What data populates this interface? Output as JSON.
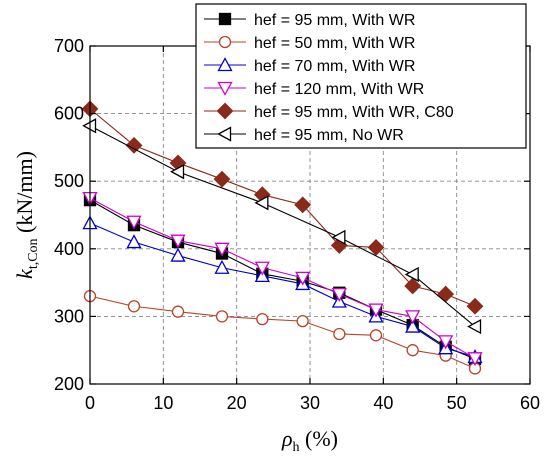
{
  "chart_data": {
    "type": "line",
    "xlabel": {
      "symbol": "ρ",
      "sub": "h",
      "rest": " (%)"
    },
    "ylabel": {
      "symbol": "k",
      "sub": "t,Con",
      "rest": " (kN/mm)"
    },
    "xlim": [
      0,
      60
    ],
    "ylim": [
      200,
      700
    ],
    "xticks": [
      "0",
      "10",
      "20",
      "30",
      "40",
      "50",
      "60"
    ],
    "yticks": [
      "200",
      "300",
      "400",
      "500",
      "600",
      "700"
    ],
    "grid": "dashed",
    "legend_position": "top-right",
    "x": [
      0,
      6,
      12,
      18,
      23.5,
      29,
      34,
      39,
      44,
      48.5,
      52.5
    ],
    "series": [
      {
        "name": "hef = 95 mm, With WR",
        "color": "#000000",
        "marker": "square-filled",
        "values": [
          472,
          435,
          410,
          393,
          363,
          352,
          335,
          310,
          287,
          255,
          237
        ]
      },
      {
        "name": "hef = 50 mm, With WR",
        "color": "#b8442a",
        "marker": "circle-open",
        "values": [
          330,
          315,
          307,
          300,
          296,
          293,
          274,
          272,
          250,
          242,
          223
        ]
      },
      {
        "name": "hef = 70 mm, With WR",
        "color": "#0000cc",
        "marker": "triangle-up-open",
        "values": [
          438,
          410,
          390,
          372,
          360,
          348,
          322,
          300,
          285,
          253,
          240
        ]
      },
      {
        "name": "hef = 120 mm, With WR",
        "color": "#cc00cc",
        "marker": "triangle-down-open",
        "values": [
          475,
          440,
          412,
          400,
          372,
          357,
          333,
          310,
          300,
          263,
          238
        ]
      },
      {
        "name": "hef = 95 mm, With WR, C80",
        "color": "#8a2a1a",
        "marker": "diamond-filled",
        "values": [
          607,
          553,
          527,
          503,
          480,
          465,
          405,
          402,
          345,
          333,
          315
        ]
      },
      {
        "name": "hef = 95 mm, No WR",
        "color": "#000000",
        "marker": "triangle-left-open",
        "values": [
          582,
          null,
          514,
          null,
          468,
          null,
          417,
          null,
          362,
          null,
          285
        ]
      }
    ]
  }
}
